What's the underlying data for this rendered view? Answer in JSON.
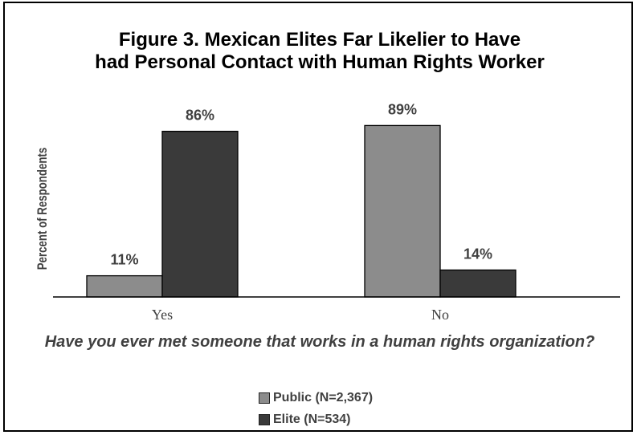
{
  "chart_data": {
    "type": "bar",
    "title_lines": [
      "Figure 3.  Mexican Elites Far Likelier to Have",
      "had Personal Contact with Human Rights Worker"
    ],
    "categories": [
      "Yes",
      "No"
    ],
    "series": [
      {
        "name": "Public (N=2,367)",
        "values": [
          11,
          89
        ],
        "labels": [
          "11%",
          "89%"
        ],
        "color": "#8c8c8c"
      },
      {
        "name": "Elite (N=534)",
        "values": [
          86,
          14
        ],
        "labels": [
          "86%",
          "14%"
        ],
        "color": "#3a3a3a"
      }
    ],
    "xlabel": "Have you ever met someone that works in a human rights organization?",
    "ylabel": "Percent of Respondents",
    "ylim": [
      0,
      100
    ],
    "grid": false,
    "legend_position": "bottom"
  }
}
